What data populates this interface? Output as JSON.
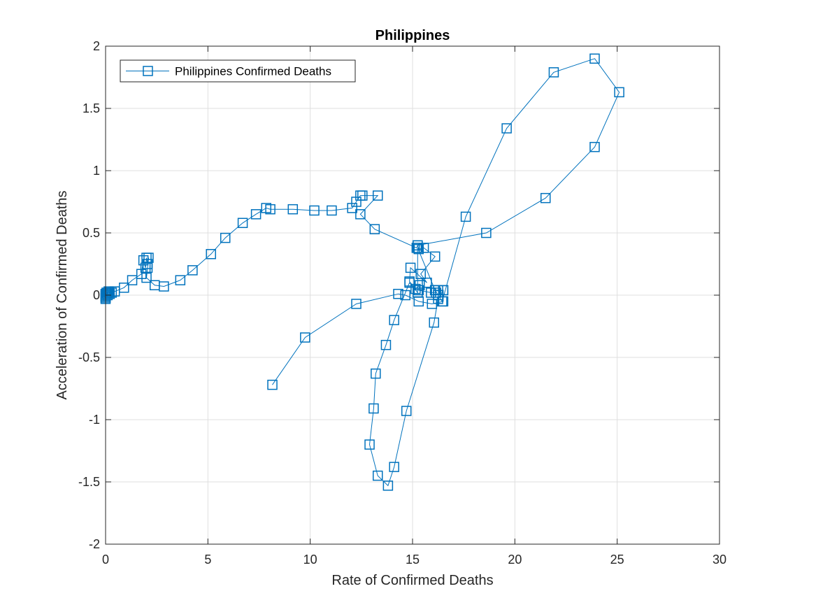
{
  "chart_data": {
    "type": "line",
    "title": "Philippines",
    "xlabel": "Rate of Confirmed Deaths",
    "ylabel": "Acceleration of Confirmed Deaths",
    "xlim": [
      0,
      30
    ],
    "ylim": [
      -2,
      2
    ],
    "xticks": [
      0,
      5,
      10,
      15,
      20,
      25,
      30
    ],
    "yticks": [
      -2,
      -1.5,
      -1,
      -0.5,
      0,
      0.5,
      1,
      1.5,
      2
    ],
    "xtick_labels": [
      "0",
      "5",
      "10",
      "15",
      "20",
      "25",
      "30"
    ],
    "ytick_labels": [
      "-2",
      "-1.5",
      "-1",
      "-0.5",
      "0",
      "0.5",
      "1",
      "1.5",
      "2"
    ],
    "grid": true,
    "legend": {
      "position": "top-left",
      "entries": [
        "Philippines Confirmed Deaths"
      ]
    },
    "series": [
      {
        "name": "Philippines Confirmed Deaths",
        "color": "#0072BD",
        "marker": "square",
        "x": [
          0,
          0,
          0,
          0,
          0,
          0.02,
          0.05,
          0.08,
          0.1,
          0.12,
          0.15,
          0.18,
          0.2,
          0.3,
          0.45,
          0.9,
          1.3,
          1.75,
          1.85,
          1.95,
          2.0,
          2.05,
          2.1,
          2.05,
          2.0,
          2.4,
          2.85,
          3.65,
          4.25,
          5.15,
          5.85,
          6.7,
          7.35,
          7.85,
          8.05,
          9.15,
          10.2,
          11.05,
          12.05,
          12.25,
          12.45,
          12.55,
          13.3,
          12.45,
          13.15,
          15.2,
          15.25,
          15.3,
          15.55,
          16.1,
          15.4,
          15.7,
          14.9,
          14.85,
          15.15,
          15.35,
          15.3,
          15.9,
          16.15,
          16.1,
          16.25,
          16.5,
          16.5,
          15.95,
          15.3,
          14.65,
          14.3,
          12.25,
          9.75,
          8.15
        ],
        "y": [
          -0.03,
          -0.02,
          -0.01,
          0,
          0.01,
          0.01,
          0.02,
          0.01,
          0,
          0.02,
          0.03,
          0.02,
          0.01,
          0.02,
          0.03,
          0.06,
          0.12,
          0.17,
          0.28,
          0.22,
          0.3,
          0.25,
          0.3,
          0.22,
          0.14,
          0.08,
          0.07,
          0.12,
          0.2,
          0.33,
          0.46,
          0.58,
          0.65,
          0.7,
          0.69,
          0.69,
          0.68,
          0.68,
          0.7,
          0.75,
          0.8,
          0.8,
          0.8,
          0.65,
          0.53,
          0.38,
          0.4,
          0.37,
          0.38,
          0.31,
          0.17,
          0.1,
          0.22,
          0.11,
          0.05,
          0.08,
          0.04,
          0.02,
          0.02,
          0.04,
          0.04,
          0.04,
          -0.05,
          -0.07,
          -0.05,
          0,
          0.01,
          -0.07,
          -0.34,
          -0.72
        ]
      },
      {
        "name": "",
        "color": "#0072BD",
        "marker": "square",
        "x": [
          16.5,
          16.25,
          16.05,
          14.7,
          14.1,
          13.8,
          13.3,
          12.9,
          13.1,
          13.2,
          13.7,
          14.1,
          14.85,
          15.25,
          15.25,
          16.1,
          16.25,
          16.45,
          17.6,
          19.6,
          21.9,
          23.9,
          25.1,
          23.9,
          21.5,
          18.6,
          15.25
        ],
        "y": [
          0.04,
          -0.03,
          -0.22,
          -0.93,
          -1.38,
          -1.53,
          -1.45,
          -1.2,
          -0.91,
          -0.63,
          -0.4,
          -0.2,
          0.1,
          0.02,
          0.38,
          0.04,
          0.0,
          -0.05,
          0.63,
          1.34,
          1.79,
          1.9,
          1.63,
          1.19,
          0.78,
          0.5,
          0.4
        ]
      }
    ]
  }
}
